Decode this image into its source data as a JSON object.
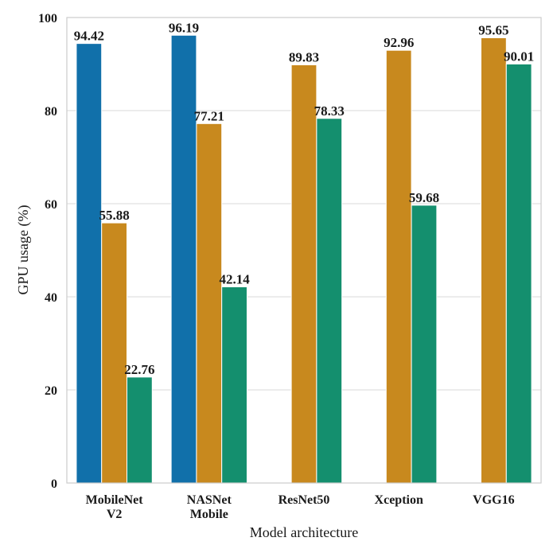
{
  "chart_data": {
    "type": "bar",
    "title": "",
    "xlabel": "Model architecture",
    "ylabel": "GPU usage (%)",
    "ylim": [
      0,
      100
    ],
    "yticks": [
      0,
      20,
      40,
      60,
      80,
      100
    ],
    "grid": "horizontal",
    "legend": "none",
    "categories": [
      [
        "MobileNet",
        "V2"
      ],
      [
        "NASNet",
        "Mobile"
      ],
      [
        "ResNet50"
      ],
      [
        "Xception"
      ],
      [
        "VGG16"
      ]
    ],
    "series": [
      {
        "color": "#1170aa",
        "values": [
          94.42,
          96.19,
          null,
          null,
          null
        ]
      },
      {
        "color": "#c8891e",
        "values": [
          55.88,
          77.21,
          89.83,
          92.96,
          95.65
        ]
      },
      {
        "color": "#148f6e",
        "values": [
          22.76,
          42.14,
          78.33,
          59.68,
          90.01
        ]
      }
    ],
    "data_labels": [
      [
        "94.42",
        "96.19",
        null,
        null,
        null
      ],
      [
        "55.88",
        "77.21",
        "89.83",
        "92.96",
        "95.65"
      ],
      [
        "22.76",
        "42.14",
        "78.33",
        "59.68",
        "90.01"
      ]
    ]
  }
}
